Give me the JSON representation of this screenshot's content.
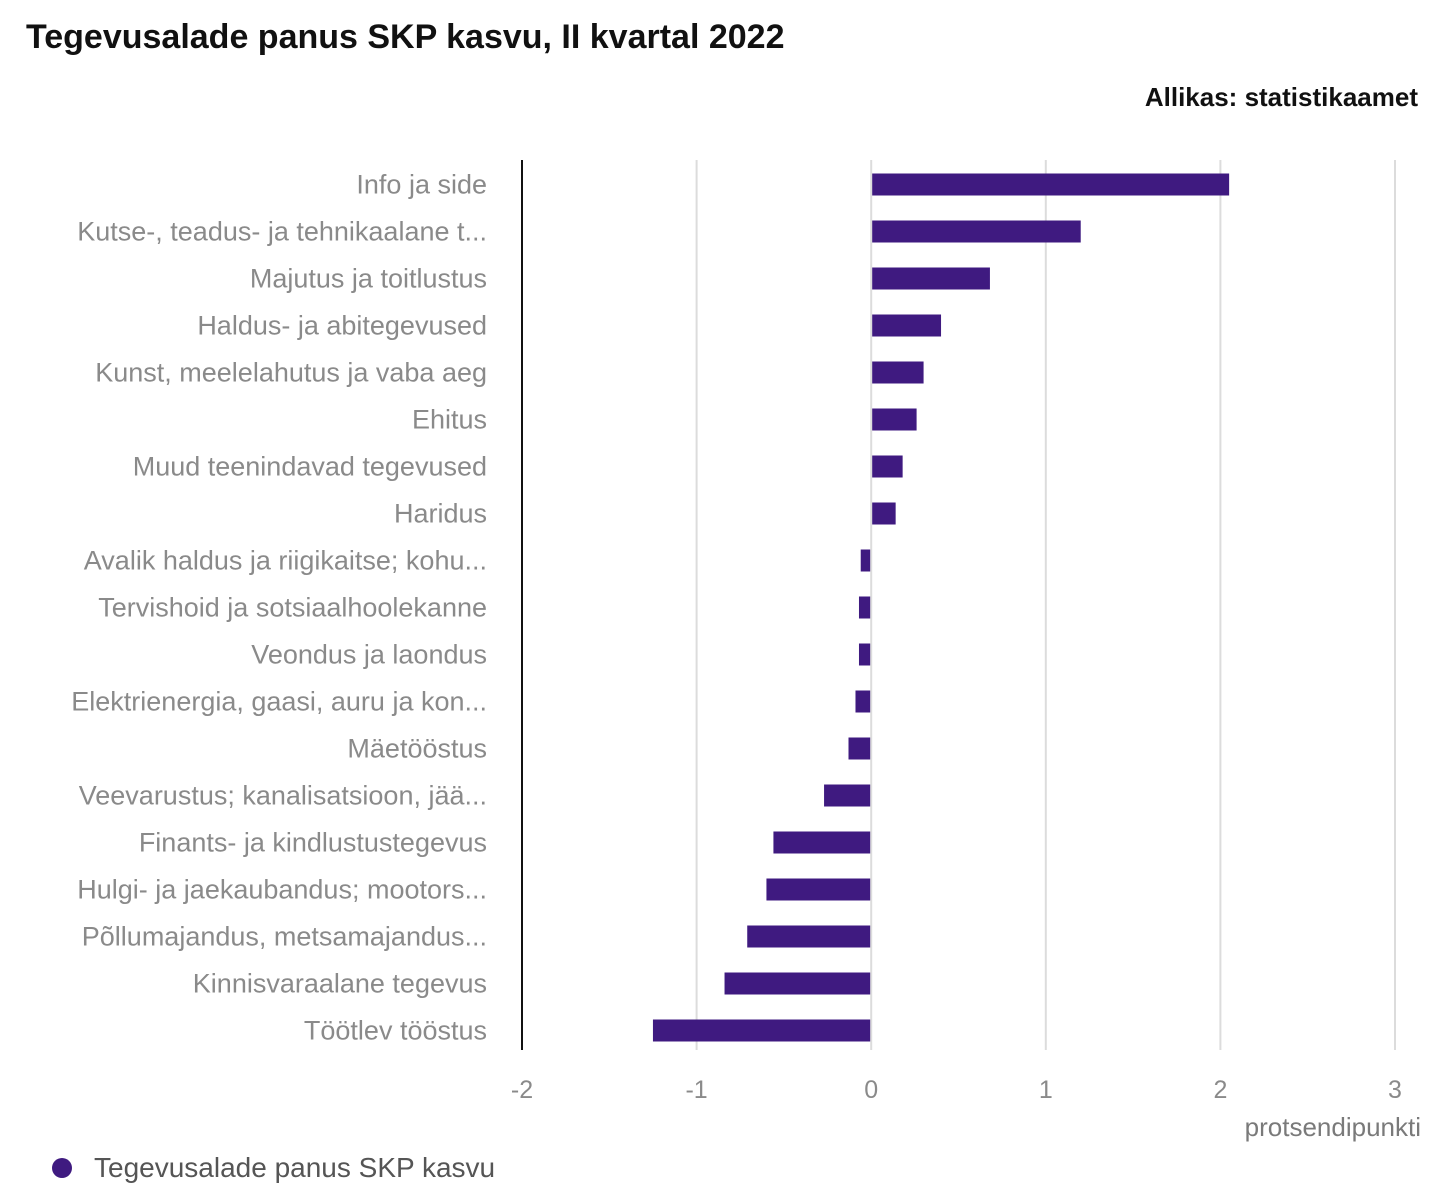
{
  "chart_data": {
    "type": "bar",
    "orientation": "horizontal",
    "title": "Tegevusalade panus SKP kasvu, II kvartal 2022",
    "source": "Allikas: statistikaamet",
    "xlabel": "protsendipunkti",
    "xlim": [
      -2,
      3
    ],
    "xticks": [
      "-2",
      "-1",
      "0",
      "1",
      "2",
      "3"
    ],
    "grid": true,
    "legend_position": "bottom-left",
    "bar_color": "#3f1a80",
    "categories": [
      "Info ja side",
      "Kutse-, teadus- ja tehnikaalane t...",
      "Majutus ja toitlustus",
      "Haldus- ja abitegevused",
      "Kunst, meelelahutus ja vaba aeg",
      "Ehitus",
      "Muud teenindavad tegevused",
      "Haridus",
      "Avalik haldus ja riigikaitse; kohu...",
      "Tervishoid ja sotsiaalhoolekanne",
      "Veondus ja laondus",
      "Elektrienergia, gaasi, auru ja kon...",
      "Mäetööstus",
      "Veevarustus; kanalisatsioon, jää...",
      "Finants- ja kindlustustegevus",
      "Hulgi- ja jaekaubandus; mootors...",
      "Põllumajandus, metsamajandus...",
      "Kinnisvaraalane tegevus",
      "Töötlev tööstus"
    ],
    "series": [
      {
        "name": "Tegevusalade panus SKP kasvu",
        "values": [
          2.05,
          1.2,
          0.68,
          0.4,
          0.3,
          0.26,
          0.18,
          0.14,
          -0.06,
          -0.07,
          -0.07,
          -0.09,
          -0.13,
          -0.27,
          -0.56,
          -0.6,
          -0.71,
          -0.84,
          -1.25
        ]
      }
    ]
  }
}
